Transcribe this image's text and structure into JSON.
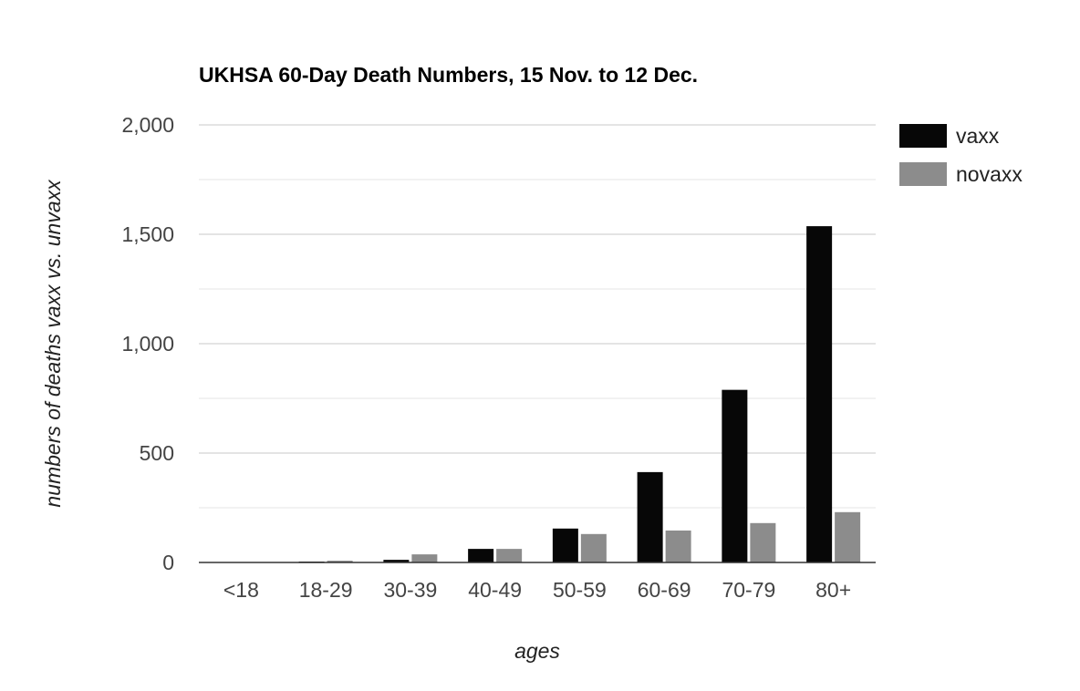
{
  "chart_data": {
    "type": "bar",
    "title": "UKHSA 60-Day Death Numbers, 15 Nov. to 12 Dec.",
    "xlabel": "ages",
    "ylabel": "numbers of deaths vaxx vs. unvaxx",
    "categories": [
      "<18",
      "18-29",
      "30-39",
      "40-49",
      "50-59",
      "60-69",
      "70-79",
      "80+"
    ],
    "series": [
      {
        "name": "vaxx",
        "color": "#070707",
        "values": [
          1,
          4,
          12,
          62,
          155,
          413,
          789,
          1537
        ]
      },
      {
        "name": "novaxx",
        "color": "#8c8c8c",
        "values": [
          1,
          8,
          37,
          62,
          130,
          146,
          180,
          230
        ]
      }
    ],
    "ylim": [
      0,
      2000
    ],
    "yticks": [
      0,
      500,
      1000,
      1500,
      2000
    ],
    "ytick_labels": [
      "0",
      "500",
      "1,000",
      "1,500",
      "2,000"
    ],
    "grid": true,
    "legend_position": "right"
  }
}
